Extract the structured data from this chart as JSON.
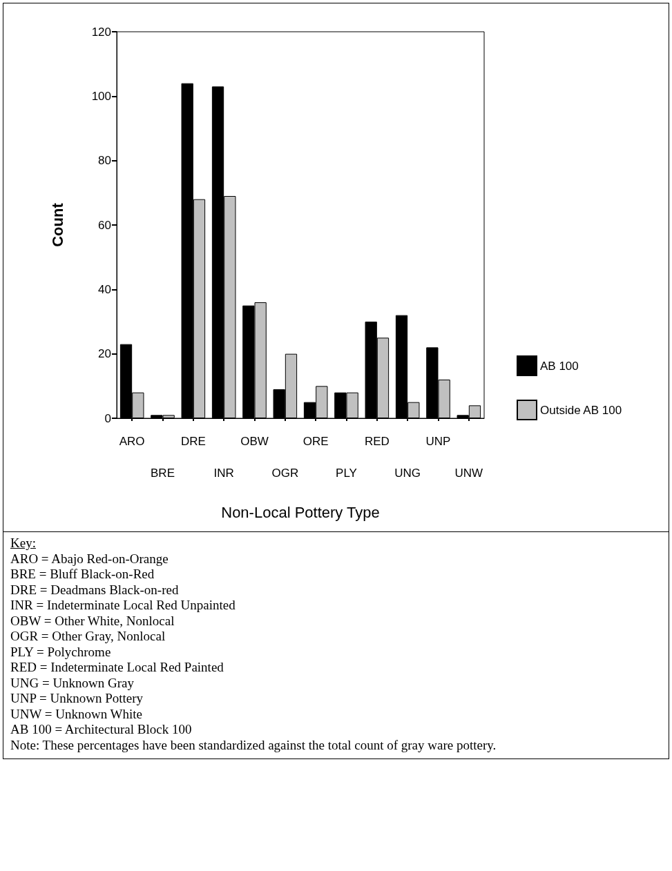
{
  "chart_data": {
    "type": "bar",
    "xlabel": "Non-Local Pottery Type",
    "ylabel": "Count",
    "categories": [
      "ARO",
      "BRE",
      "DRE",
      "INR",
      "OBW",
      "OGR",
      "ORE",
      "PLY",
      "RED",
      "UNG",
      "UNP",
      "UNW"
    ],
    "series": [
      {
        "name": "AB 100",
        "color": "#000000",
        "values": [
          23,
          1,
          104,
          103,
          35,
          9,
          5,
          8,
          30,
          32,
          22,
          1
        ]
      },
      {
        "name": "Outside AB 100",
        "color": "#c0c0c0",
        "values": [
          8,
          1,
          68,
          69,
          36,
          20,
          10,
          8,
          25,
          5,
          12,
          4
        ]
      }
    ],
    "ylim": [
      0,
      120
    ],
    "yticks": [
      0,
      20,
      40,
      60,
      80,
      100,
      120
    ],
    "grid": false,
    "legend": "right",
    "annotations": [
      "Key:",
      "ARO = Abajo Red-on-Orange",
      "BRE = Bluff Black-on-Red",
      "DRE = Deadmans Black-on-red",
      "INR = Indeterminate Local Red Unpainted",
      "OBW = Other White, Nonlocal",
      "OGR = Other Gray, Nonlocal",
      "PLY = Polychrome",
      "RED = Indeterminate Local Red Painted",
      "UNG = Unknown Gray",
      "UNP = Unknown Pottery",
      "UNW = Unknown White",
      "AB 100 = Architectural Block 100",
      "Note: These percentages have been standardized against the total count of gray ware pottery."
    ]
  }
}
